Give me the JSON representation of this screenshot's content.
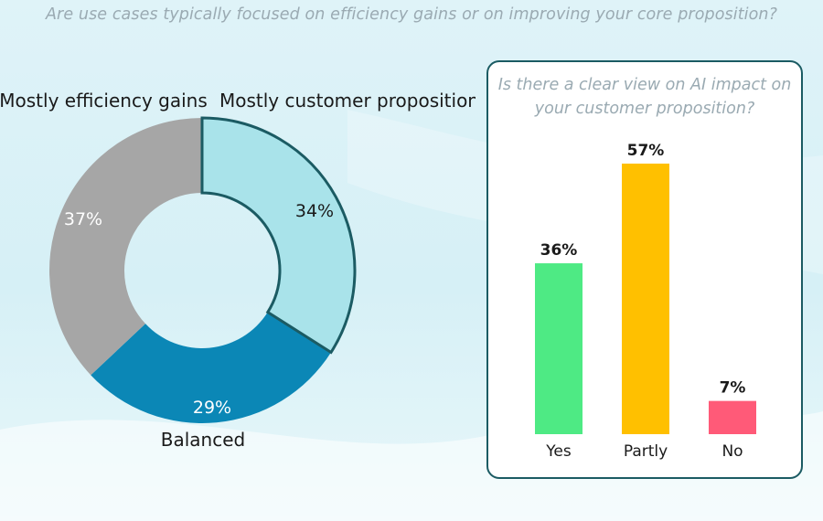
{
  "main_title": "Are use cases typically focused on efficiency gains or on improving your core proposition?",
  "panel_title_line1": "Is there a clear view on AI impact on",
  "panel_title_line2": "your customer proposition?",
  "colors": {
    "efficiency": "#a6a6a6",
    "customer": "#a9e3ea",
    "balanced": "#0b87b6",
    "highlight_outline": "#1b5b63",
    "yes": "#4eea84",
    "partly": "#ffc000",
    "no": "#ff5a78"
  },
  "chart_data": [
    {
      "type": "pie",
      "title": "Are use cases typically focused on efficiency gains or on improving your core proposition?",
      "donut": true,
      "categories": [
        "Mostly customer proposition",
        "Balanced",
        "Mostly efficiency gains"
      ],
      "values": [
        34,
        29,
        37
      ],
      "value_labels": [
        "34%",
        "29%",
        "37%"
      ],
      "highlighted": "Mostly customer proposition"
    },
    {
      "type": "bar",
      "title": "Is there a clear view on AI impact on your customer proposition?",
      "categories": [
        "Yes",
        "Partly",
        "No"
      ],
      "values": [
        36,
        57,
        7
      ],
      "value_labels": [
        "36%",
        "57%",
        "7%"
      ],
      "ylim": [
        0,
        57
      ]
    }
  ]
}
